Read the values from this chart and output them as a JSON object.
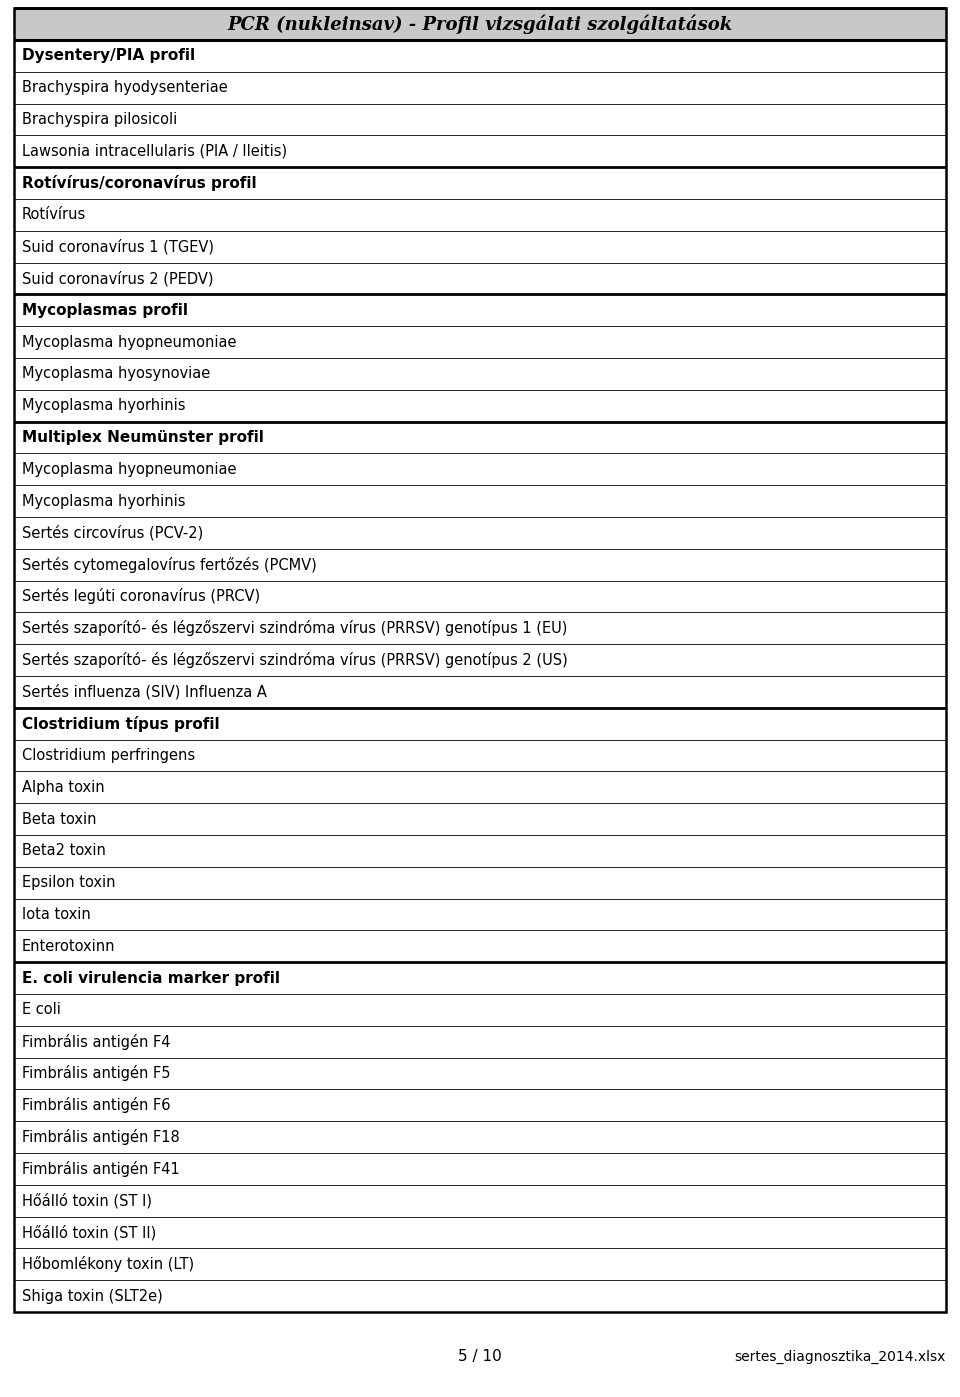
{
  "title": "PCR (nukleinsav) - Profil vizsgálati szolgáltatások",
  "page_label": "5 / 10",
  "file_label": "sertes_diagnosztika_2014.xlsx",
  "background_color": "#ffffff",
  "header_bg": "#c8c8c8",
  "sections": [
    {
      "header": "Dysentery/PIA profil",
      "items": [
        "Brachyspira hyodysenteriae",
        "Brachyspira pilosicoli",
        "Lawsonia intracellularis (PIA / Ileitis)"
      ]
    },
    {
      "header": "Rotívírus/coronavírus profil",
      "items": [
        "Rotívírus",
        "Suid coronavírus 1 (TGEV)",
        "Suid coronavírus 2 (PEDV)"
      ]
    },
    {
      "header": "Mycoplasmas profil",
      "items": [
        "Mycoplasma hyopneumoniae",
        "Mycoplasma hyosynoviae",
        "Mycoplasma hyorhinis"
      ]
    },
    {
      "header": "Multiplex Neumünster profil",
      "items": [
        "Mycoplasma hyopneumoniae",
        "Mycoplasma hyorhinis",
        "Sertés circovírus (PCV-2)",
        "Sertés cytomegalovírus fertőzés (PCMV)",
        "Sertés legúti coronavírus (PRCV)",
        "Sertés szaporító- és légzőszervi szindróma vírus (PRRSV) genotípus 1 (EU)",
        "Sertés szaporító- és légzőszervi szindróma vírus (PRRSV) genotípus 2 (US)",
        "Sertés influenza (SIV) Influenza A"
      ]
    },
    {
      "header": "Clostridium típus profil",
      "items": [
        "Clostridium perfringens",
        "Alpha toxin",
        "Beta toxin",
        "Beta2 toxin",
        "Epsilon toxin",
        "Iota toxin",
        "Enterotoxinn"
      ]
    },
    {
      "header": "E. coli virulencia marker profil",
      "items": [
        "E coli",
        "Fimbrális antigén F4",
        "Fimbrális antigén F5",
        "Fimbrális antigén F6",
        "Fimbrális antigén F18",
        "Fimbrális antigén F41",
        "Hőálló toxin (ST I)",
        "Hőálló toxin (ST II)",
        "Hőbomlékony toxin (LT)",
        "Shiga toxin (SLT2e)"
      ]
    }
  ]
}
